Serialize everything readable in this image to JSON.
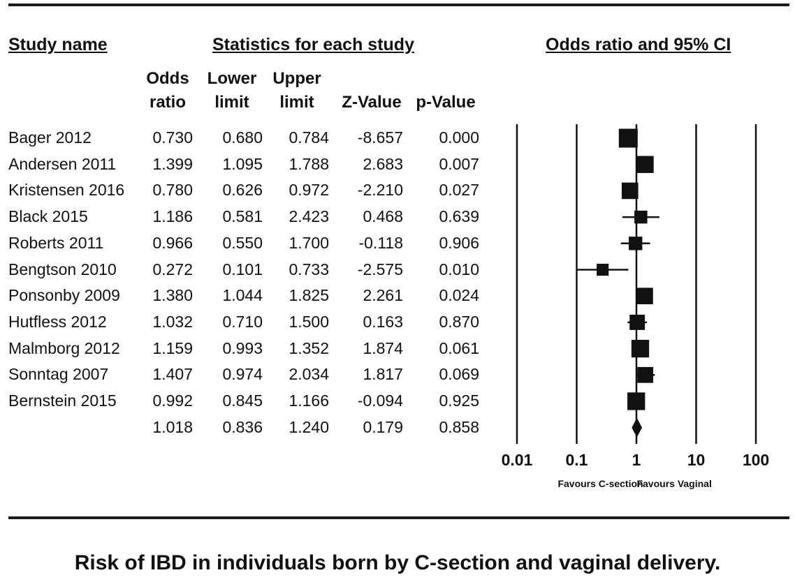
{
  "headers": {
    "study_name": "Study name",
    "statistics": "Statistics for each study",
    "or_ci": "Odds ratio and 95% CI"
  },
  "columns": {
    "or": [
      "Odds",
      "ratio"
    ],
    "lower": [
      "Lower",
      "limit"
    ],
    "upper": [
      "Upper",
      "limit"
    ],
    "z": [
      "",
      "Z-Value"
    ],
    "p": [
      "",
      "p-Value"
    ]
  },
  "chart_data": {
    "type": "forest",
    "xscale": "log",
    "xticks": [
      "0.01",
      "0.1",
      "1",
      "10",
      "100"
    ],
    "xlim": [
      0.01,
      100
    ],
    "reference_line": 1,
    "favours_left": "Favours C-section",
    "favours_right": "Favours Vaginal",
    "studies": [
      {
        "name": "Bager 2012",
        "or": "0.730",
        "lower": "0.680",
        "upper": "0.784",
        "z": "-8.657",
        "p": "0.000",
        "or_val": 0.73,
        "lower_val": 0.68,
        "upper_val": 0.784,
        "weight": 1.0
      },
      {
        "name": "Andersen 2011",
        "or": "1.399",
        "lower": "1.095",
        "upper": "1.788",
        "z": "2.683",
        "p": "0.007",
        "or_val": 1.399,
        "lower_val": 1.095,
        "upper_val": 1.788,
        "weight": 0.85
      },
      {
        "name": "Kristensen 2016",
        "or": "0.780",
        "lower": "0.626",
        "upper": "0.972",
        "z": "-2.210",
        "p": "0.027",
        "or_val": 0.78,
        "lower_val": 0.626,
        "upper_val": 0.972,
        "weight": 0.8
      },
      {
        "name": "Black 2015",
        "or": "1.186",
        "lower": "0.581",
        "upper": "2.423",
        "z": "0.468",
        "p": "0.639",
        "or_val": 1.186,
        "lower_val": 0.581,
        "upper_val": 2.423,
        "weight": 0.5
      },
      {
        "name": "Roberts 2011",
        "or": "0.966",
        "lower": "0.550",
        "upper": "1.700",
        "z": "-0.118",
        "p": "0.906",
        "or_val": 0.966,
        "lower_val": 0.55,
        "upper_val": 1.7,
        "weight": 0.55
      },
      {
        "name": "Bengtson 2010",
        "or": "0.272",
        "lower": "0.101",
        "upper": "0.733",
        "z": "-2.575",
        "p": "0.010",
        "or_val": 0.272,
        "lower_val": 0.101,
        "upper_val": 0.733,
        "weight": 0.42
      },
      {
        "name": "Ponsonby 2009",
        "or": "1.380",
        "lower": "1.044",
        "upper": "1.825",
        "z": "2.261",
        "p": "0.024",
        "or_val": 1.38,
        "lower_val": 1.044,
        "upper_val": 1.825,
        "weight": 0.8
      },
      {
        "name": "Hutfless 2012",
        "or": "1.032",
        "lower": "0.710",
        "upper": "1.500",
        "z": "0.163",
        "p": "0.870",
        "or_val": 1.032,
        "lower_val": 0.71,
        "upper_val": 1.5,
        "weight": 0.7
      },
      {
        "name": "Malmborg 2012",
        "or": "1.159",
        "lower": "0.993",
        "upper": "1.352",
        "z": "1.874",
        "p": "0.061",
        "or_val": 1.159,
        "lower_val": 0.993,
        "upper_val": 1.352,
        "weight": 0.9
      },
      {
        "name": "Sonntag 2007",
        "or": "1.407",
        "lower": "0.974",
        "upper": "2.034",
        "z": "1.817",
        "p": "0.069",
        "or_val": 1.407,
        "lower_val": 0.974,
        "upper_val": 2.034,
        "weight": 0.75
      },
      {
        "name": "Bernstein 2015",
        "or": "0.992",
        "lower": "0.845",
        "upper": "1.166",
        "z": "-0.094",
        "p": "0.925",
        "or_val": 0.992,
        "lower_val": 0.845,
        "upper_val": 1.166,
        "weight": 0.9
      }
    ],
    "summary": {
      "or": "1.018",
      "lower": "0.836",
      "upper": "1.240",
      "z": "0.179",
      "p": "0.858",
      "or_val": 1.018,
      "lower_val": 0.836,
      "upper_val": 1.24
    }
  },
  "caption": "Risk of IBD in individuals born by C-section and vaginal delivery."
}
